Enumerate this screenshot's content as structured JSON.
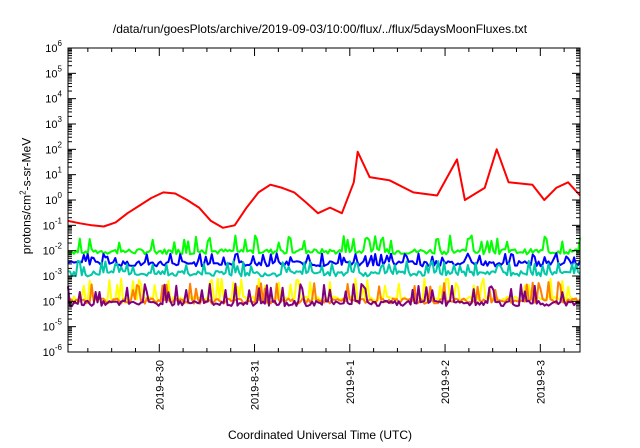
{
  "chart_data": {
    "type": "line",
    "title": "/data/run/goesPlots/archive/2019-09-03/10:00/flux/../flux/5daysMoonFluxes.txt",
    "xlabel": "Coordinated Universal Time (UTC)",
    "ylabel": {
      "pre": "protons/cm",
      "sup": "2",
      "post": "-s-sr-MeV"
    },
    "yscale": "log",
    "ylim": [
      1e-06,
      1000000.0
    ],
    "y_tick_labels": [
      {
        "base": "10",
        "exp": "-6"
      },
      {
        "base": "10",
        "exp": "-5"
      },
      {
        "base": "10",
        "exp": "-4"
      },
      {
        "base": "10",
        "exp": "-3"
      },
      {
        "base": "10",
        "exp": "-2"
      },
      {
        "base": "10",
        "exp": "-1"
      },
      {
        "base": "10",
        "exp": "0"
      },
      {
        "base": "10",
        "exp": "1"
      },
      {
        "base": "10",
        "exp": "2"
      },
      {
        "base": "10",
        "exp": "3"
      },
      {
        "base": "10",
        "exp": "4"
      },
      {
        "base": "10",
        "exp": "5"
      },
      {
        "base": "10",
        "exp": "6"
      }
    ],
    "xlim": [
      "2019-08-29T01:00",
      "2019-09-03T10:00"
    ],
    "x_ticks": [
      "2019-08-30",
      "2019-08-31",
      "2019-09-01",
      "2019-09-02",
      "2019-09-03"
    ],
    "x_tick_labels": [
      "2019-8-30",
      "2019-8-31",
      "2019-9-1",
      "2019-9-2",
      "2019-9-3"
    ],
    "grid": false,
    "legend": "none",
    "series": [
      {
        "color": "#ff0000",
        "points": [
          [
            "2019-08-29T01:00",
            0.15
          ],
          [
            "2019-08-29T04:00",
            0.12
          ],
          [
            "2019-08-29T07:00",
            0.1
          ],
          [
            "2019-08-29T10:00",
            0.09
          ],
          [
            "2019-08-29T13:00",
            0.13
          ],
          [
            "2019-08-29T16:00",
            0.3
          ],
          [
            "2019-08-29T19:00",
            0.6
          ],
          [
            "2019-08-29T22:00",
            1.2
          ],
          [
            "2019-08-30T01:00",
            2.0
          ],
          [
            "2019-08-30T04:00",
            1.8
          ],
          [
            "2019-08-30T07:00",
            1.0
          ],
          [
            "2019-08-30T10:00",
            0.5
          ],
          [
            "2019-08-30T13:00",
            0.15
          ],
          [
            "2019-08-30T16:00",
            0.08
          ],
          [
            "2019-08-30T19:00",
            0.1
          ],
          [
            "2019-08-30T22:00",
            0.5
          ],
          [
            "2019-08-31T01:00",
            2.0
          ],
          [
            "2019-08-31T04:00",
            4.0
          ],
          [
            "2019-08-31T07:00",
            3.0
          ],
          [
            "2019-08-31T10:00",
            2.0
          ],
          [
            "2019-08-31T13:00",
            0.8
          ],
          [
            "2019-08-31T16:00",
            0.3
          ],
          [
            "2019-08-31T19:00",
            0.5
          ],
          [
            "2019-08-31T22:00",
            0.3
          ],
          [
            "2019-09-01T01:00",
            5.0
          ],
          [
            "2019-09-01T02:00",
            80.0
          ],
          [
            "2019-09-01T05:00",
            8.0
          ],
          [
            "2019-09-01T10:00",
            6.0
          ],
          [
            "2019-09-01T16:00",
            2.0
          ],
          [
            "2019-09-01T22:00",
            1.5
          ],
          [
            "2019-09-02T03:00",
            40.0
          ],
          [
            "2019-09-02T05:00",
            1.0
          ],
          [
            "2019-09-02T10:00",
            3.0
          ],
          [
            "2019-09-02T13:00",
            100.0
          ],
          [
            "2019-09-02T16:00",
            5.0
          ],
          [
            "2019-09-02T22:00",
            4.0
          ],
          [
            "2019-09-03T01:00",
            1.0
          ],
          [
            "2019-09-03T04:00",
            3.0
          ],
          [
            "2019-09-03T07:00",
            5.0
          ],
          [
            "2019-09-03T10:00",
            1.5
          ]
        ]
      },
      {
        "color": "#00ff00",
        "base": 0.009,
        "spike": 0.04
      },
      {
        "color": "#0000ff",
        "base": 0.003,
        "spike": 0.008
      },
      {
        "color": "#00c8a8",
        "base": 0.0012,
        "spike": 0.004
      },
      {
        "color": "#ffff00",
        "base": 0.00012,
        "spike": 0.0008
      },
      {
        "color": "#ff8000",
        "base": 0.0001,
        "spike": 0.0006
      },
      {
        "color": "#800080",
        "base": 8e-05,
        "spike": 0.0005
      }
    ]
  }
}
